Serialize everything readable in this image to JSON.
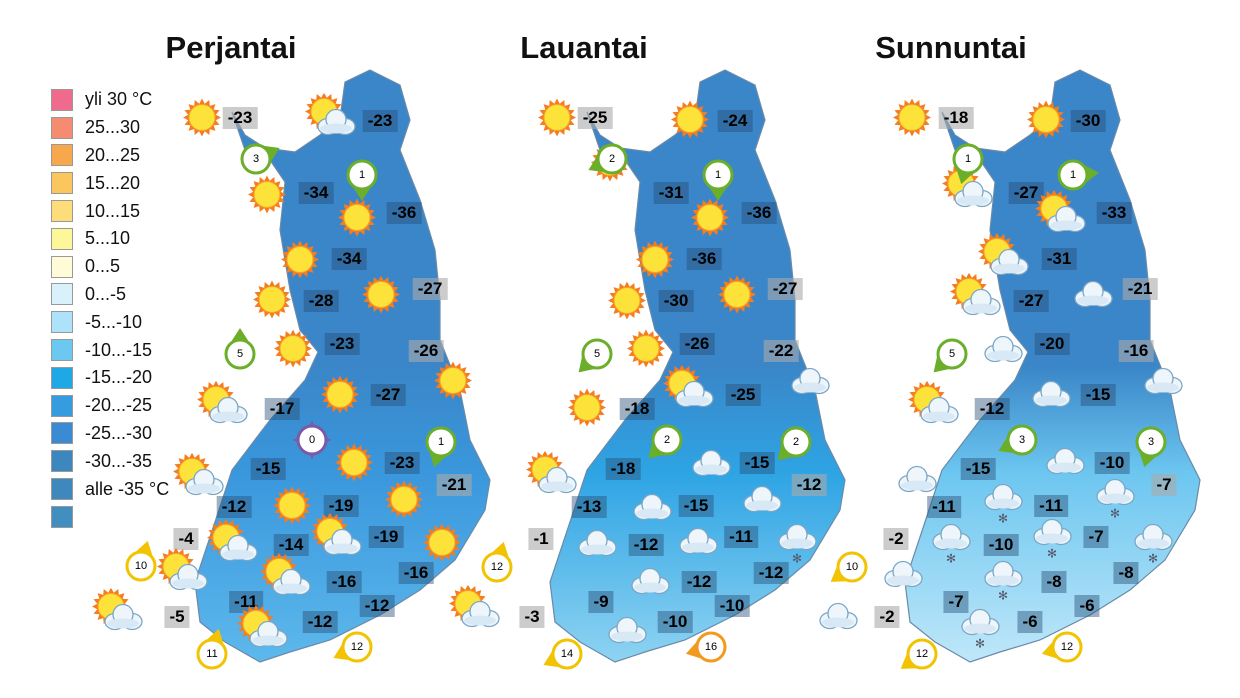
{
  "legend": {
    "items": [
      {
        "label": "yli 30 °C",
        "color": "#f06a8e"
      },
      {
        "label": "25...30",
        "color": "#f58b70"
      },
      {
        "label": "20...25",
        "color": "#f7a74c"
      },
      {
        "label": "15...20",
        "color": "#fbc65e"
      },
      {
        "label": "10...15",
        "color": "#fddc7a"
      },
      {
        "label": "5...10",
        "color": "#fef79a"
      },
      {
        "label": "0...5",
        "color": "#fffbd6"
      },
      {
        "label": "0...-5",
        "color": "#d9f1fb"
      },
      {
        "label": "-5...-10",
        "color": "#aee2f8"
      },
      {
        "label": "-10...-15",
        "color": "#6cc8f0"
      },
      {
        "label": "-15...-20",
        "color": "#1ea9e6"
      },
      {
        "label": "-20...-25",
        "color": "#359ce0"
      },
      {
        "label": "-25...-30",
        "color": "#3a8ad4"
      },
      {
        "label": "-30...-35",
        "color": "#3d87bf"
      },
      {
        "label": "alle -35 °C",
        "color": "#3f88bd"
      },
      {
        "label": "",
        "color": "#428ebf"
      }
    ]
  },
  "panels": [
    {
      "day": "Perjantai",
      "temperatures": [
        -23,
        -23,
        -34,
        -36,
        -34,
        -28,
        -27,
        -23,
        -26,
        -27,
        -17,
        -15,
        -23,
        -21,
        -12,
        -19,
        -19,
        -4,
        -14,
        -16,
        -16,
        -11,
        -5,
        -12,
        -12
      ],
      "winds": [
        {
          "speed": 3,
          "color": "#6aae2a"
        },
        {
          "speed": 1,
          "color": "#6aae2a"
        },
        {
          "speed": 5,
          "color": "#6aae2a"
        },
        {
          "speed": 0,
          "color": "#7a5aa8"
        },
        {
          "speed": 1,
          "color": "#6aae2a"
        },
        {
          "speed": 10,
          "color": "#f2c300"
        },
        {
          "speed": 11,
          "color": "#f2c300"
        },
        {
          "speed": 12,
          "color": "#f2c300"
        }
      ],
      "weather": [
        "sun",
        "sun-cloud",
        "sun",
        "sun",
        "sun",
        "sun",
        "sun",
        "sun",
        "sun",
        "sun",
        "sun-cloud",
        "sun",
        "sun-cloud",
        "sun",
        "sun",
        "sun",
        "sun-cloud",
        "sun-cloud",
        "sun-cloud",
        "sun-cloud",
        "sun-cloud",
        "sun-cloud"
      ],
      "colors": {
        "north": "#3a86c8",
        "mid": "#3a97dc",
        "south": "#5db8ec"
      }
    },
    {
      "day": "Lauantai",
      "temperatures": [
        -25,
        -24,
        -31,
        -36,
        -36,
        -30,
        -27,
        -26,
        -22,
        -25,
        -18,
        -18,
        -15,
        -12,
        -13,
        -15,
        -11,
        -1,
        -12,
        -12,
        -12,
        -9,
        -3,
        -10,
        -10
      ],
      "winds": [
        {
          "speed": 2,
          "color": "#6aae2a"
        },
        {
          "speed": 1,
          "color": "#6aae2a"
        },
        {
          "speed": 5,
          "color": "#6aae2a"
        },
        {
          "speed": 2,
          "color": "#6aae2a"
        },
        {
          "speed": 2,
          "color": "#6aae2a"
        },
        {
          "speed": 12,
          "color": "#f2c300"
        },
        {
          "speed": 14,
          "color": "#f2c300"
        },
        {
          "speed": 16,
          "color": "#f29a1e"
        }
      ],
      "weather": [
        "sun",
        "sun",
        "sun",
        "sun",
        "sun",
        "sun",
        "sun",
        "sun",
        "cloud",
        "sun-cloud",
        "sun",
        "cloud",
        "sun-cloud",
        "cloud",
        "cloud",
        "cloud",
        "cloud",
        "cloud-snow",
        "cloud",
        "sun-cloud",
        "cloud"
      ],
      "colors": {
        "north": "#3a86c8",
        "mid": "#2ea4e4",
        "south": "#8ed3f2"
      }
    },
    {
      "day": "Sunnuntai",
      "temperatures": [
        -18,
        -30,
        -27,
        -33,
        -31,
        -27,
        -21,
        -20,
        -16,
        -15,
        -12,
        -15,
        -10,
        -7,
        -11,
        -11,
        -7,
        -2,
        -10,
        -8,
        -8,
        -7,
        -2,
        -6,
        -6
      ],
      "winds": [
        {
          "speed": 1,
          "color": "#6aae2a"
        },
        {
          "speed": 1,
          "color": "#6aae2a"
        },
        {
          "speed": 5,
          "color": "#6aae2a"
        },
        {
          "speed": 3,
          "color": "#6aae2a"
        },
        {
          "speed": 3,
          "color": "#6aae2a"
        },
        {
          "speed": 10,
          "color": "#f2c300"
        },
        {
          "speed": 12,
          "color": "#f2c300"
        },
        {
          "speed": 12,
          "color": "#f2c300"
        }
      ],
      "weather": [
        "sun",
        "sun",
        "sun-cloud",
        "sun-cloud",
        "sun-cloud",
        "sun-cloud",
        "cloud",
        "cloud",
        "cloud",
        "cloud",
        "sun-cloud",
        "cloud",
        "cloud",
        "cloud-snow",
        "cloud-snow",
        "cloud-snow",
        "cloud-snow",
        "cloud-snow",
        "cloud",
        "cloud-snow",
        "cloud",
        "cloud-snow"
      ],
      "colors": {
        "north": "#3a86c8",
        "mid": "#6cc6f0",
        "south": "#bfe7f9"
      }
    }
  ]
}
